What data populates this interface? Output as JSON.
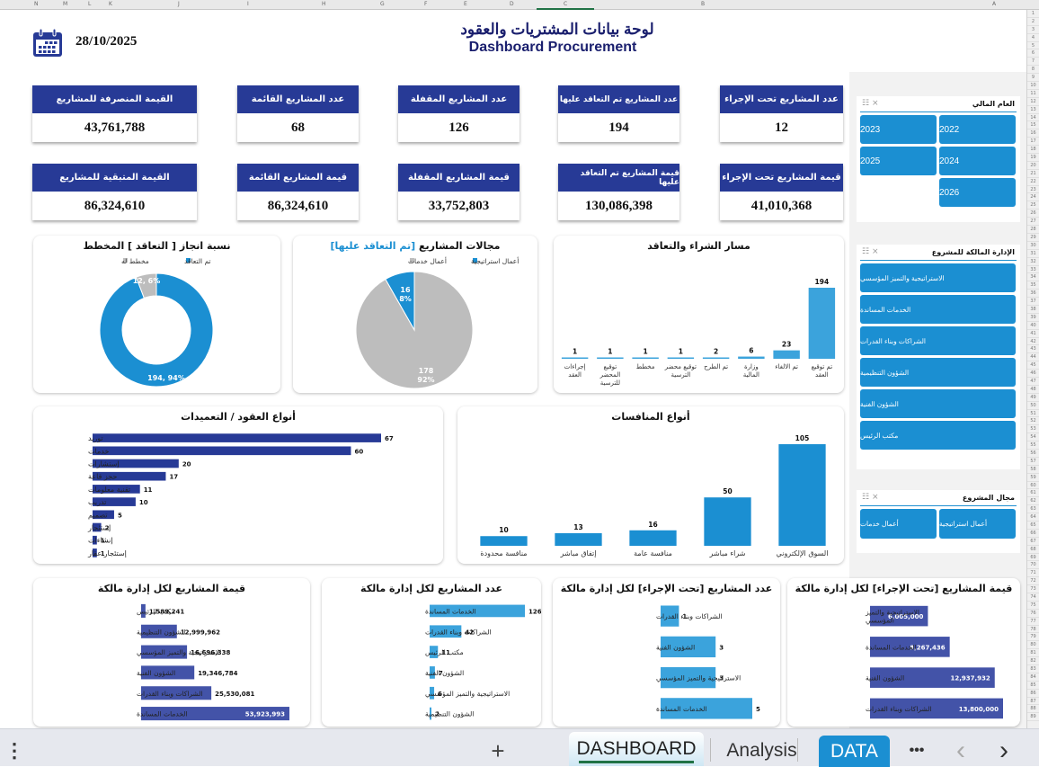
{
  "spreadsheet": {
    "column_headers": [
      "N",
      "M",
      "L",
      "K",
      "J",
      "I",
      "H",
      "G",
      "F",
      "E",
      "D",
      "C",
      "B",
      "A"
    ],
    "sheet_tabs": [
      {
        "label": "DASHBOARD",
        "active": true
      },
      {
        "label": "Analysis",
        "active": false
      },
      {
        "label": "DATA",
        "active": false
      }
    ],
    "more_label": "•••",
    "add_sheet_label": "+",
    "menu_label": "⋮",
    "prev_label": "‹",
    "next_label": "›"
  },
  "header": {
    "date": "28/10/2025",
    "title_ar": "لوحة بيانات المشتريات والعقود",
    "title_en": "Dashboard Procurement",
    "calendar_icon": "calendar-icon"
  },
  "kpis": [
    {
      "label": "القيمة المنصرفة للمشاريع",
      "value": "43,761,788"
    },
    {
      "label": "عدد المشاريع القائمة",
      "value": "68"
    },
    {
      "label": "عدد المشاريع المقفلة",
      "value": "126"
    },
    {
      "label": "عدد المشاريع تم التعاقد عليها",
      "value": "194"
    },
    {
      "label": "عدد المشاريع تحت الإجراء",
      "value": "12"
    },
    {
      "label": "القيمة المتبقية للمشاريع",
      "value": "86,324,610"
    },
    {
      "label": "قيمة المشاريع القائمة",
      "value": "86,324,610"
    },
    {
      "label": "قيمة المشاريع المقفلة",
      "value": "33,752,803"
    },
    {
      "label": "قيمة المشاريع تم التعاقد عليها",
      "value": "130,086,398"
    },
    {
      "label": "قيمة المشاريع تحت الإجراء",
      "value": "41,010,368"
    }
  ],
  "slicers": {
    "fiscal_year": {
      "title": "العام المالي",
      "items": [
        "2022",
        "2023",
        "2024",
        "2025",
        "2026"
      ]
    },
    "owner_dept": {
      "title": "الإدارة المالكة للمشروع",
      "items": [
        "الاستراتيجية والتميز المؤسسي",
        "الخدمات المساندة",
        "الشراكات وبناء القدرات",
        "الشؤون التنظيمية",
        "الشؤون الفنية",
        "مكتب الرئيس"
      ]
    },
    "project_field": {
      "title": "مجال المشروع",
      "items": [
        "أعمال استراتيجية",
        "أعمال خدمات"
      ]
    }
  },
  "chart_data": [
    {
      "id": "completion",
      "type": "pie",
      "subtype": "donut",
      "title": "نسبة انجاز [ التعاقد ] المخطط",
      "legend": [
        "تم التعاقد",
        "مخطط له"
      ],
      "legend_position": "top",
      "slices": [
        {
          "name": "تم التعاقد",
          "value": 194,
          "percent": 94,
          "label": "194, 94%",
          "color": "#1b8fd2"
        },
        {
          "name": "مخطط له",
          "value": 12,
          "percent": 6,
          "label": "12, 6%",
          "color": "#bdbdbd"
        }
      ]
    },
    {
      "id": "fields",
      "type": "pie",
      "title": "مجالات المشاريع [تم التعاقد عليها]",
      "title_main": "مجالات المشاريع ",
      "title_highlight": "[تم التعاقد عليها]",
      "legend": [
        "أعمال استراتيجية",
        "أعمال خدمات"
      ],
      "legend_position": "top",
      "slices": [
        {
          "name": "أعمال استراتيجية",
          "value": 16,
          "percent": 8,
          "label1": "16",
          "label2": "8%",
          "color": "#1b8fd2"
        },
        {
          "name": "أعمال خدمات",
          "value": 178,
          "percent": 92,
          "label1": "178",
          "label2": "92%",
          "color": "#bdbdbd"
        }
      ]
    },
    {
      "id": "pipeline",
      "type": "bar",
      "title": "مسار الشراء والتعاقد",
      "categories": [
        "إجراءات العقد",
        "توقيع المحضر للترسية",
        "مخطط",
        "توقيع محضر الترسية",
        "تم الطرح",
        "وزارة المالية",
        "تم الالغاء",
        "تم توقيع العقد"
      ],
      "values": [
        1,
        1,
        1,
        1,
        2,
        6,
        23,
        194
      ],
      "ylim": [
        0,
        194
      ],
      "color": "#3ba3dc"
    },
    {
      "id": "contract_types",
      "type": "bar",
      "orientation": "horizontal",
      "title": "أنواع العقود / التعميدات",
      "categories": [
        "توريد",
        "خدمات",
        "إستشارات",
        "حجز قاعة",
        "تقنية معلومات",
        "تدريب",
        "تصميم",
        "إستئجار",
        "إنشاءات",
        "إستئجار عقار"
      ],
      "values": [
        67,
        60,
        20,
        17,
        11,
        10,
        5,
        2,
        1,
        1
      ],
      "ylim": [
        0,
        67
      ],
      "color": "#273a96"
    },
    {
      "id": "tender_types",
      "type": "bar",
      "title": "أنواع المنافسات",
      "categories": [
        "منافسة محدودة",
        "إتفاق مباشر",
        "منافسة عامة",
        "شراء مباشر",
        "السوق الإلكتروني"
      ],
      "values": [
        10,
        13,
        16,
        50,
        105
      ],
      "ylim": [
        0,
        105
      ],
      "color": "#1b8fd2"
    },
    {
      "id": "value_by_dept",
      "type": "bar",
      "orientation": "horizontal",
      "title": "قيمة المشاريع لكل إدارة مالكة",
      "categories": [
        "مكتب الرئيس",
        "الشؤون التنظيمية",
        "الاستراتيجية والتميز المؤسسي",
        "الشؤون الفنية",
        "الشراكات وبناء القدرات",
        "الخدمات المساندة"
      ],
      "values": [
        1589241,
        12999962,
        16696338,
        19346784,
        25530081,
        53923993
      ],
      "labels": [
        "1,589,241",
        "12,999,962",
        "16,696,338",
        "19,346,784",
        "25,530,081",
        "53,923,993"
      ],
      "ylim": [
        0,
        53923993
      ],
      "color": "#4353a8"
    },
    {
      "id": "count_by_dept",
      "type": "bar",
      "orientation": "horizontal",
      "title": "عدد المشاريع لكل إدارة مالكة",
      "categories": [
        "الخدمات المساندة",
        "الشراكات وبناء القدرات",
        "مكتب الرئيس",
        "الشؤون الفنية",
        "الاستراتيجية والتميز المؤسسي",
        "الشؤون التنظيمية"
      ],
      "values": [
        126,
        42,
        11,
        7,
        6,
        2
      ],
      "labels": [
        "126",
        "42",
        "11",
        "7",
        "6",
        "2"
      ],
      "ylim": [
        0,
        126
      ],
      "color": "#3ba3dc"
    },
    {
      "id": "count_in_progress",
      "type": "bar",
      "orientation": "horizontal",
      "title": "عدد المشاريع [تحت الإجراء] لكل إدارة مالكة",
      "categories": [
        "الشراكات وبناء القدرات",
        "الشؤون الفنية",
        "الاستراتيجية والتميز المؤسسي",
        "الخدمات المساندة"
      ],
      "values": [
        1,
        3,
        3,
        5
      ],
      "labels": [
        "1",
        "3",
        "3",
        "5"
      ],
      "ylim": [
        0,
        5
      ],
      "color": "#3ba3dc"
    },
    {
      "id": "value_in_progress",
      "type": "bar",
      "orientation": "horizontal",
      "title": "قيمة المشاريع [تحت الإجراء] لكل إدارة مالكة",
      "categories": [
        "الاستراتيجية والتميز المؤسسي",
        "الخدمات المساندة",
        "الشؤون الفنية",
        "الشراكات وبناء القدرات"
      ],
      "values": [
        6005000,
        8267436,
        12937932,
        13800000
      ],
      "labels": [
        "6,005,000",
        "8,267,436",
        "12,937,932",
        "13,800,000"
      ],
      "ylim": [
        0,
        13800000
      ],
      "color": "#4353a8"
    }
  ]
}
